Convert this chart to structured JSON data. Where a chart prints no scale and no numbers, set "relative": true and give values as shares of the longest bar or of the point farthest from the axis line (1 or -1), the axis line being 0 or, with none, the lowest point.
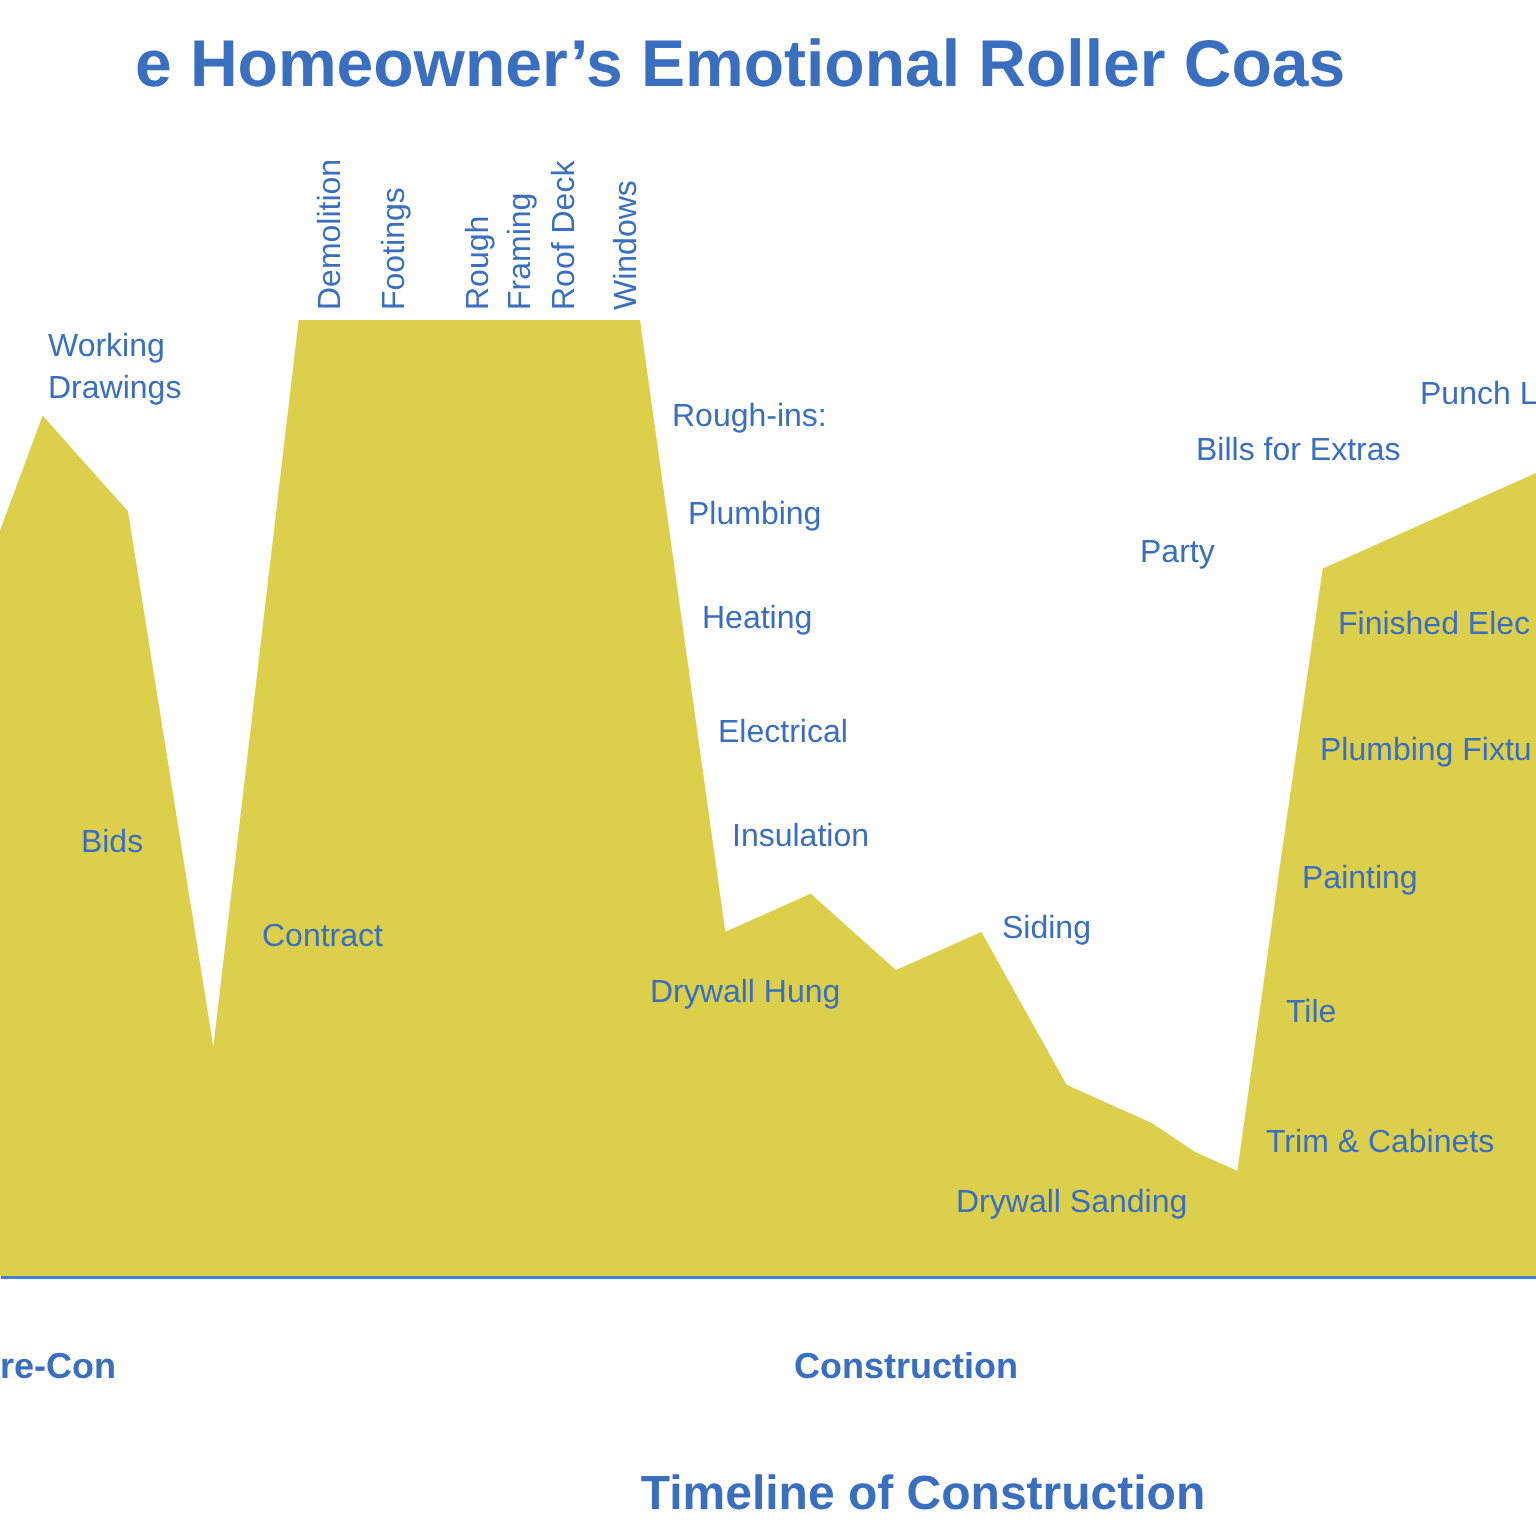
{
  "chart_data": {
    "type": "area",
    "relative": true,
    "title": "e Homeowner’s Emotional Roller Coas",
    "xlabel": "Timeline of Construction",
    "categories": [
      null,
      null,
      null,
      null,
      null,
      null,
      null,
      null,
      null,
      null,
      null,
      null,
      null,
      null,
      null,
      null,
      null,
      null,
      null,
      null,
      null,
      null,
      null,
      null,
      null,
      null,
      null,
      null,
      null,
      null,
      null,
      null,
      null,
      null,
      null,
      null,
      null
    ],
    "series": [
      {
        "color": "#dccf4c",
        "values": [
          0.78,
          0.9,
          0.85,
          0.8,
          0.52,
          0.24,
          0.62,
          1,
          1,
          1,
          1,
          1,
          1,
          1,
          1,
          1,
          0.68,
          0.36,
          0.38,
          0.4,
          0.36,
          0.32,
          0.34,
          0.36,
          0.28,
          0.2,
          0.18,
          0.16,
          0.13,
          0.11,
          0.43,
          0.74,
          0.76,
          0.78,
          0.8,
          0.82,
          0.84
        ]
      }
    ],
    "annotations": [
      "Working Drawings",
      "Bids",
      "Contract",
      "Demolition",
      "Footings",
      "Rough Framing",
      "Roof Deck",
      "Windows",
      "Rough-ins:",
      "Plumbing",
      "Heating",
      "Electrical",
      "Insulation",
      "Drywall Hung",
      "Siding",
      "Drywall Sanding",
      "Party",
      "Bills for Extras",
      "Punch L",
      "Finished Elec",
      "Plumbing Fixtu",
      "Painting",
      "Tile",
      "Trim & Cabinets",
      "re-Con",
      "Construction"
    ]
  }
}
